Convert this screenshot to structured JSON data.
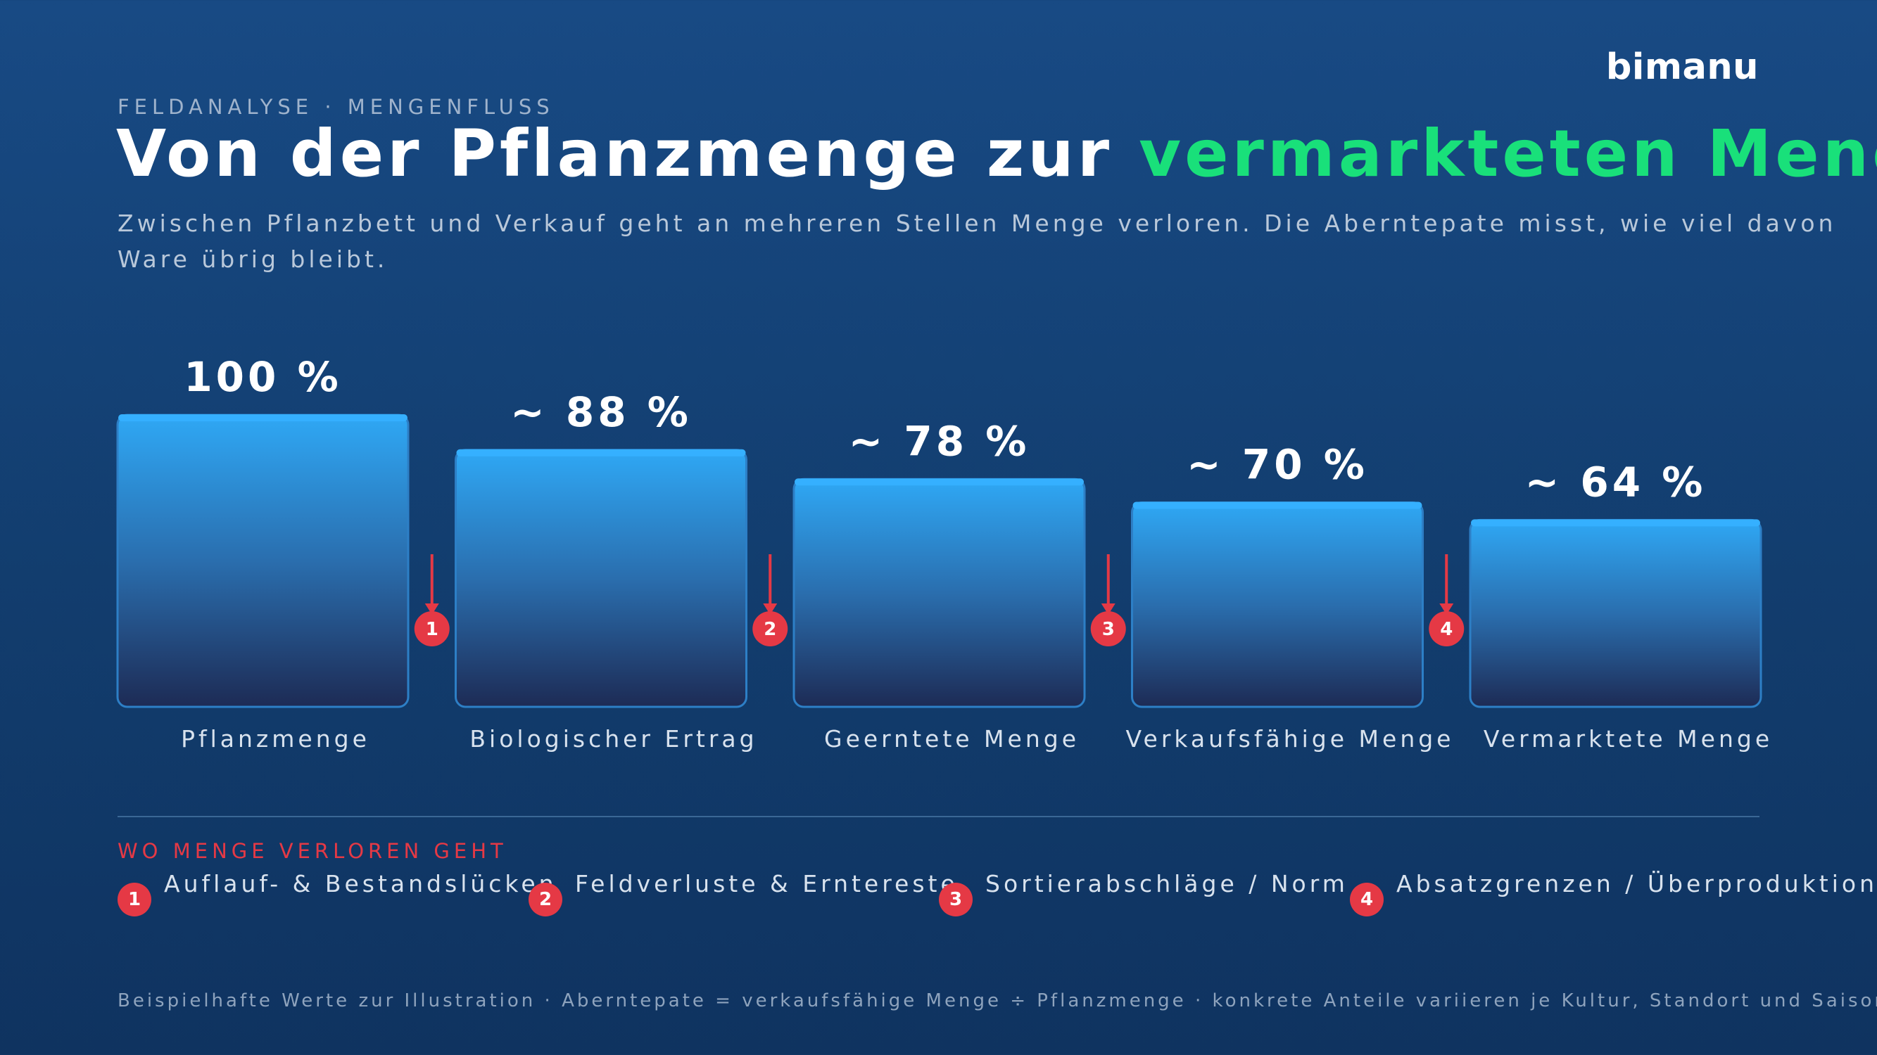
{
  "brand": "bimanu",
  "eyebrow": "FELDANALYSE · MENGENFLUSS",
  "title": {
    "part1": "Von der Pflanzmenge zur ",
    "highlight": "vermarkteten Menge"
  },
  "subtitle": {
    "line1": "Zwischen Pflanzbett und Verkauf geht an mehreren Stellen Menge verloren. Die Aberntерate misst, wie viel davon",
    "line2": "Ware übrig bleibt."
  },
  "colors": {
    "accent": "#19e07a",
    "bar_top": "#2fa8f5",
    "bar_bottom": "#1d2b55",
    "loss_marker": "#e53945"
  },
  "chart_data": {
    "type": "bar",
    "categories": [
      "Pflanzmenge",
      "Biologischer Ertrag",
      "Geerntete Menge",
      "Verkaufsfähige Menge",
      "Vermarktete Menge"
    ],
    "values": [
      100,
      88,
      78,
      70,
      64
    ],
    "value_labels": [
      "100 %",
      "~ 88 %",
      "~ 78 %",
      "~ 70 %",
      "~ 64 %"
    ],
    "unit": "%",
    "loss_markers": [
      "1",
      "2",
      "3",
      "4"
    ],
    "ylim": [
      0,
      100
    ],
    "grid": false
  },
  "legend": {
    "heading": "WO MENGE VERLOREN GEHT",
    "items": [
      {
        "num": "1",
        "label": "Auflauf- & Bestandslücken"
      },
      {
        "num": "2",
        "label": "Feldverluste & Erntereste"
      },
      {
        "num": "3",
        "label": "Sortierabschläge / Norm"
      },
      {
        "num": "4",
        "label": "Absatzgrenzen / Überproduktion"
      }
    ]
  },
  "footnote": "Beispielhafte Werte zur Illustration · Aberntерate = verkaufsfähige Menge ÷ Pflanzmenge · konkrete Anteile variieren je Kultur, Standort und Saison."
}
